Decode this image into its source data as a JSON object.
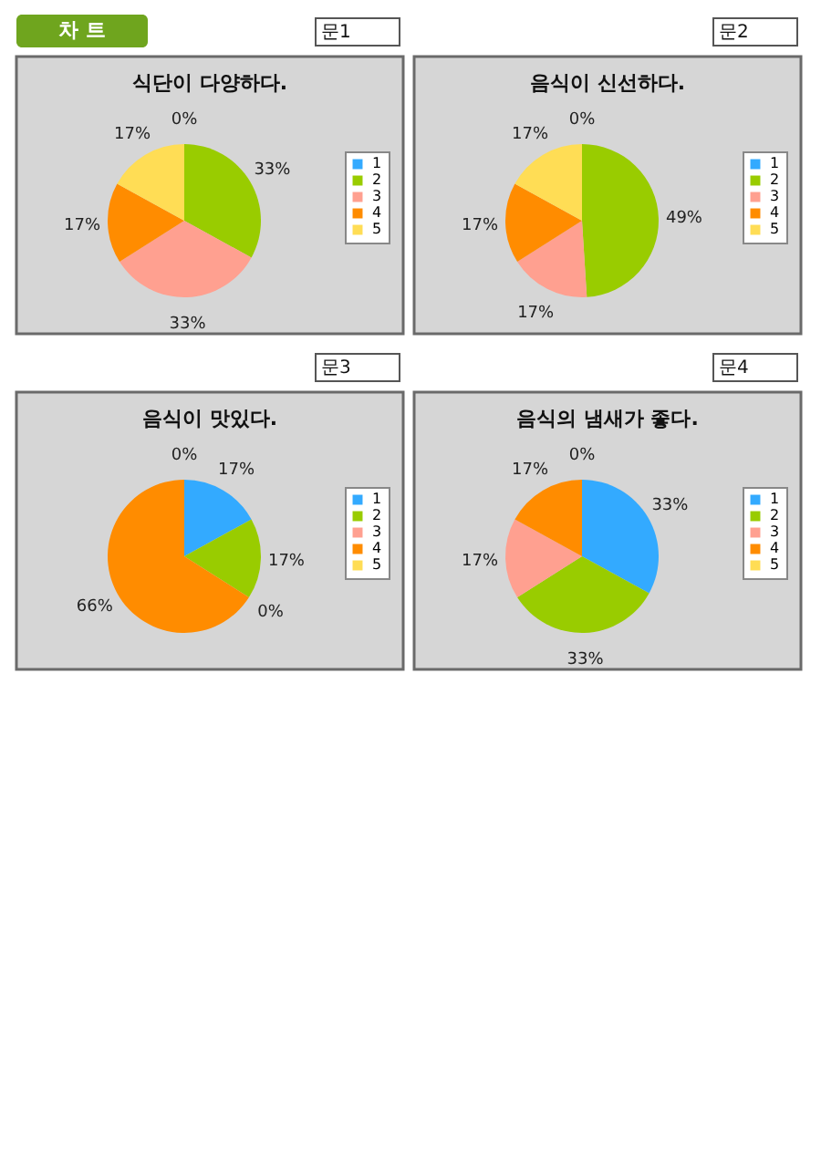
{
  "chart_data": [
    {
      "type": "pie",
      "title": "식단이 다양하다.",
      "categories": [
        "1",
        "2",
        "3",
        "4",
        "5"
      ],
      "values": [
        0,
        33,
        33,
        17,
        17
      ],
      "colors": [
        "#33aaff",
        "#99cc00",
        "#ffa090",
        "#ff8c00",
        "#ffdd55"
      ],
      "value_labels": [
        "0%",
        "33%",
        "33%",
        "17%",
        "17%"
      ],
      "legend": "right",
      "annotations": [
        "차 트",
        "문1"
      ]
    },
    {
      "type": "pie",
      "title": "음식이 신선하다.",
      "categories": [
        "1",
        "2",
        "3",
        "4",
        "5"
      ],
      "values": [
        0,
        49,
        17,
        17,
        17
      ],
      "colors": [
        "#33aaff",
        "#99cc00",
        "#ffa090",
        "#ff8c00",
        "#ffdd55"
      ],
      "value_labels": [
        "0%",
        "49%",
        "17%",
        "17%",
        "17%"
      ],
      "legend": "right",
      "annotations": [
        "문2"
      ]
    },
    {
      "type": "pie",
      "title": "음식이 맛있다.",
      "categories": [
        "1",
        "2",
        "3",
        "4",
        "5"
      ],
      "values": [
        17,
        17,
        0,
        66,
        0
      ],
      "colors": [
        "#33aaff",
        "#99cc00",
        "#ffa090",
        "#ff8c00",
        "#ffdd55"
      ],
      "value_labels": [
        "17%",
        "17%",
        "0%",
        "66%",
        "0%"
      ],
      "legend": "right",
      "annotations": [
        "문3"
      ]
    },
    {
      "type": "pie",
      "title": "음식의 냄새가 좋다.",
      "categories": [
        "1",
        "2",
        "3",
        "4",
        "5"
      ],
      "values": [
        33,
        33,
        17,
        17,
        0
      ],
      "colors": [
        "#33aaff",
        "#99cc00",
        "#ffa090",
        "#ff8c00",
        "#ffdd55"
      ],
      "value_labels": [
        "33%",
        "33%",
        "17%",
        "17%",
        "0%"
      ],
      "legend": "right",
      "annotations": [
        "문4"
      ]
    }
  ]
}
